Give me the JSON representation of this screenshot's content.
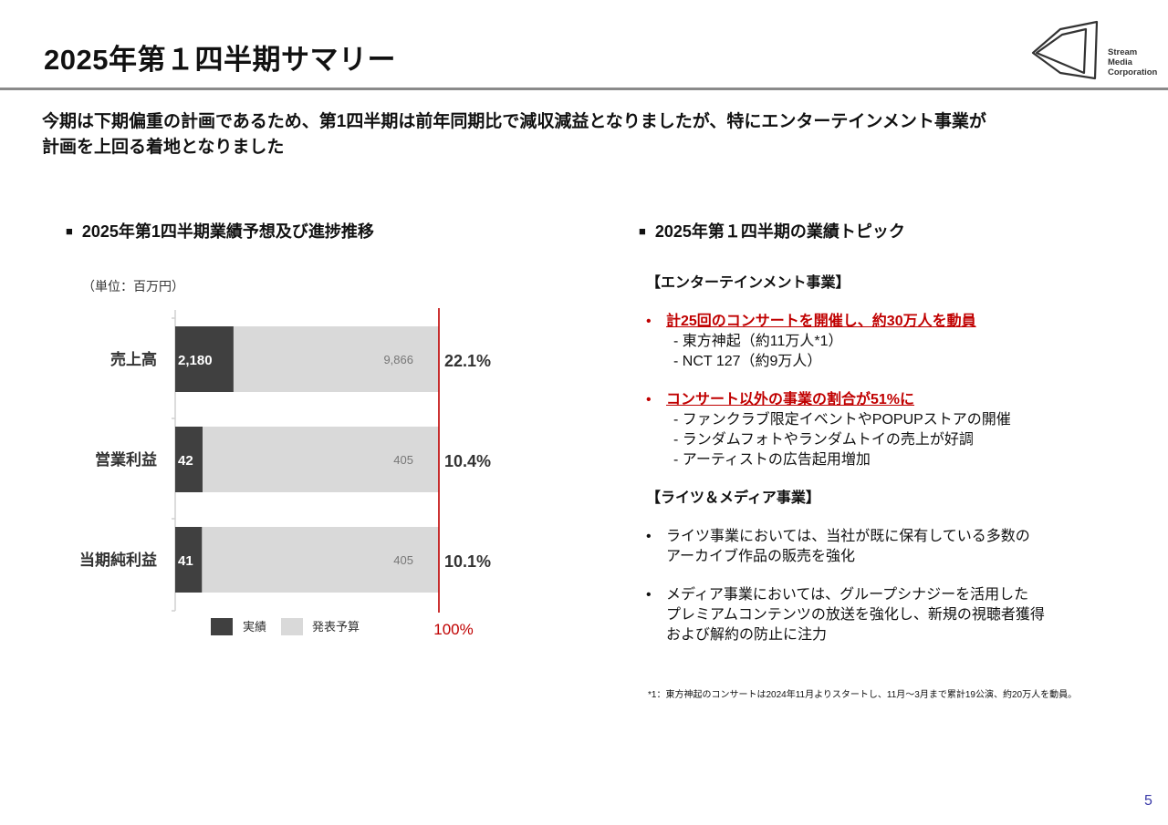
{
  "header": {
    "title": "2025年第１四半期サマリー",
    "logo_text": [
      "Stream",
      "Media",
      "Corporation"
    ]
  },
  "lead": {
    "line1": "今期は下期偏重の計画であるため、第1四半期は前年同期比で減収減益となりましたが、特にエンターテインメント事業が",
    "line2": "計画を上回る着地となりました"
  },
  "left_section": {
    "heading": "2025年第1四半期業績予想及び進捗推移",
    "unit": "（単位：百万円）"
  },
  "chart_data": {
    "type": "bar",
    "orientation": "horizontal",
    "stacked": true,
    "categories": [
      "売上高",
      "営業利益",
      "当期純利益"
    ],
    "series": [
      {
        "name": "実績",
        "values": [
          2180,
          42,
          41
        ],
        "labels": [
          "2,180",
          "42",
          "41"
        ],
        "color": "#404040"
      },
      {
        "name": "発表予算",
        "values": [
          9866,
          405,
          405
        ],
        "labels": [
          "9,866",
          "405",
          "405"
        ],
        "color": "#d9d9d9"
      }
    ],
    "progress_percent": [
      22.1,
      10.4,
      10.1
    ],
    "progress_labels": [
      "22.1%",
      "10.4%",
      "10.1%"
    ],
    "reference_line": {
      "value_percent": 100,
      "label": "100%",
      "color": "#c00000"
    },
    "legend": {
      "position": "bottom",
      "entries": [
        "実績",
        "発表予算"
      ]
    },
    "grid": false
  },
  "right_section": {
    "heading": "2025年第１四半期の業績トピック",
    "entertainment": {
      "label": "【エンターテインメント事業】",
      "topics": [
        {
          "bullet": "•",
          "text": "計25回のコンサートを開催し、約30万人を動員",
          "subs": [
            "- 東方神起（約11万人*1）",
            "- NCT 127（約9万人）"
          ]
        },
        {
          "bullet": "•",
          "text": "コンサート以外の事業の割合が51%に",
          "subs": [
            "- ファンクラブ限定イベントやPOPUPストアの開催",
            "- ランダムフォトやランダムトイの売上が好調",
            "- アーティストの広告起用増加"
          ]
        }
      ]
    },
    "rights_media": {
      "label": "【ライツ＆メディア事業】",
      "topics": [
        {
          "bullet": "•",
          "lines": [
            "ライツ事業においては、当社が既に保有している多数の",
            "アーカイブ作品の販売を強化"
          ]
        },
        {
          "bullet": "•",
          "lines": [
            "メディア事業においては、グループシナジーを活用した",
            "プレミアムコンテンツの放送を強化し、新規の視聴者獲得",
            "および解約の防止に注力"
          ]
        }
      ]
    }
  },
  "footnote": "*1：東方神起のコンサートは2024年11月よりスタートし、11月～3月まで累計19公演、約20万人を動員。",
  "page_number": "5"
}
